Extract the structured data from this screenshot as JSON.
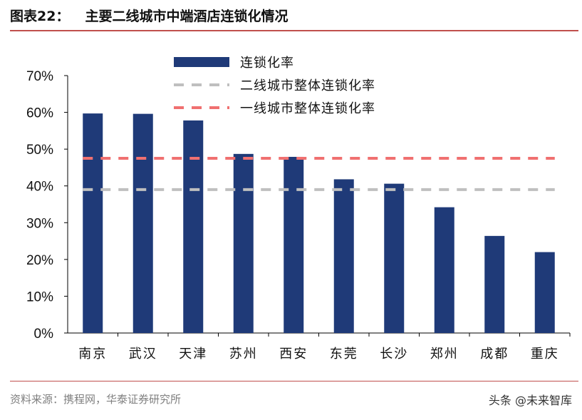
{
  "header": {
    "figure_label": "图表22：",
    "title": "主要二线城市中端酒店连锁化情况"
  },
  "footer": {
    "source": "资料来源：携程网，华泰证券研究所",
    "watermark": "头条 @未来智库"
  },
  "colors": {
    "bar": "#1f3a78",
    "tier2_line": "#bfbfbf",
    "tier1_line": "#f07070",
    "rule": "#c0504d"
  },
  "chart_data": {
    "type": "bar",
    "title": "主要二线城市中端酒店连锁化情况",
    "categories": [
      "南京",
      "武汉",
      "天津",
      "苏州",
      "西安",
      "东莞",
      "长沙",
      "郑州",
      "成都",
      "重庆"
    ],
    "series": [
      {
        "name": "连锁化率",
        "values": [
          0.597,
          0.596,
          0.578,
          0.487,
          0.479,
          0.418,
          0.406,
          0.342,
          0.264,
          0.22
        ]
      }
    ],
    "reference_lines": [
      {
        "name": "二线城市整体连锁化率",
        "value": 0.39,
        "style": "dashed"
      },
      {
        "name": "一线城市整体连锁化率",
        "value": 0.475,
        "style": "dashed"
      }
    ],
    "ylim": [
      0,
      0.7
    ],
    "yticks": [
      0,
      0.1,
      0.2,
      0.3,
      0.4,
      0.5,
      0.6,
      0.7
    ],
    "ytick_labels": [
      "0%",
      "10%",
      "20%",
      "30%",
      "40%",
      "50%",
      "60%",
      "70%"
    ],
    "xlabel": "",
    "ylabel": "",
    "legend_position": "top-center",
    "grid": false
  }
}
